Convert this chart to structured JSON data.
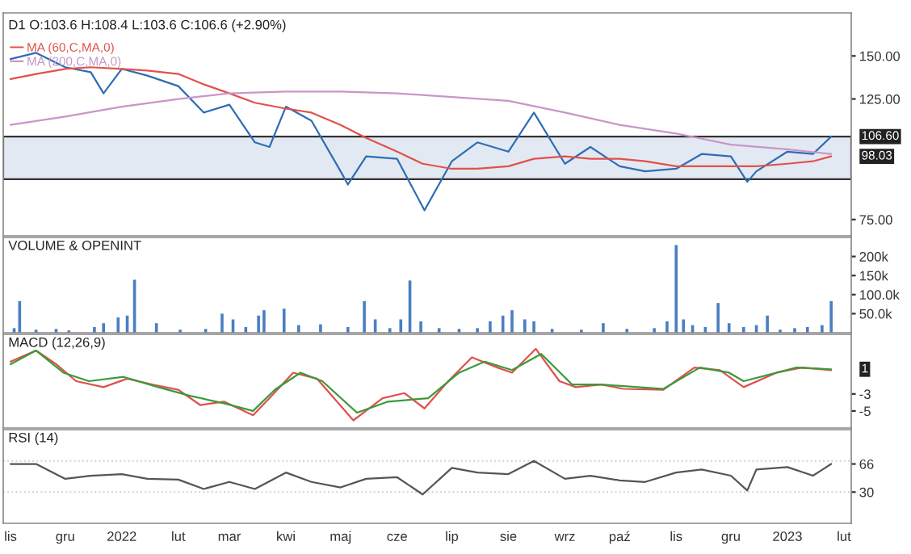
{
  "chart_data": [
    {
      "type": "line",
      "title": "D1 O:103.6 H:108.4 L:103.6 C:106.6 (+2.90%)",
      "log": true,
      "legend": "top left",
      "tick_labels": "y",
      "xlim": [
        "2021-10-28",
        "2023-02-05"
      ],
      "ylim": [
        70,
        180
      ],
      "yticks": [
        {
          "value": 150,
          "label": "150.00"
        },
        {
          "value": 125,
          "label": "125.00"
        },
        {
          "value": 75,
          "label": "75.00"
        }
      ],
      "bands": [
        {
          "axis": "y",
          "from": 89,
          "to": 106.6,
          "color": "#e3e9f2"
        }
      ],
      "series": [
        {
          "color": "#2f6db5",
          "x": [
            "2021-11-01",
            "2021-11-15",
            "2021-12-01",
            "2021-12-15",
            "2021-12-22",
            "2022-01-01",
            "2022-01-15",
            "2022-02-01",
            "2022-02-15",
            "2022-03-01",
            "2022-03-15",
            "2022-03-23",
            "2022-04-01",
            "2022-04-15",
            "2022-05-01",
            "2022-05-05",
            "2022-05-15",
            "2022-06-01",
            "2022-06-16",
            "2022-07-01",
            "2022-07-15",
            "2022-08-01",
            "2022-08-15",
            "2022-09-01",
            "2022-09-15",
            "2022-10-01",
            "2022-10-15",
            "2022-11-01",
            "2022-11-15",
            "2022-12-01",
            "2022-12-10",
            "2022-12-15",
            "2023-01-01",
            "2023-01-15",
            "2023-01-25"
          ],
          "values": [
            148,
            152,
            143,
            140,
            128,
            142,
            138,
            132,
            118,
            122,
            104,
            102,
            121,
            114,
            92,
            87,
            98,
            97,
            78,
            96,
            104,
            100,
            118,
            95,
            102,
            94,
            92,
            93,
            99,
            98,
            88,
            92,
            100,
            99,
            106.6
          ]
        },
        {
          "name": "MA (60,C,MA,0)",
          "color": "#e0524a",
          "x": [
            "2021-11-01",
            "2021-11-15",
            "2021-12-01",
            "2021-12-15",
            "2022-01-01",
            "2022-01-15",
            "2022-02-01",
            "2022-02-15",
            "2022-03-01",
            "2022-03-15",
            "2022-04-01",
            "2022-04-15",
            "2022-05-01",
            "2022-05-15",
            "2022-06-01",
            "2022-06-15",
            "2022-07-01",
            "2022-07-15",
            "2022-08-01",
            "2022-08-15",
            "2022-09-01",
            "2022-09-15",
            "2022-10-01",
            "2022-10-15",
            "2022-11-01",
            "2022-11-15",
            "2022-12-01",
            "2022-12-15",
            "2023-01-01",
            "2023-01-15",
            "2023-01-25"
          ],
          "values": [
            136,
            139,
            142,
            143,
            142,
            141,
            139,
            133,
            128,
            123,
            120,
            118,
            112,
            106,
            100,
            95,
            93,
            93,
            94,
            97,
            98,
            97,
            97,
            96,
            94,
            94,
            94,
            94,
            95,
            96,
            98.03
          ]
        },
        {
          "name": "MA (200,C,MA,0)",
          "color": "#c896c8",
          "x": [
            "2021-11-01",
            "2021-12-01",
            "2022-01-01",
            "2022-02-01",
            "2022-03-01",
            "2022-04-01",
            "2022-05-01",
            "2022-06-01",
            "2022-07-01",
            "2022-08-01",
            "2022-09-01",
            "2022-10-01",
            "2022-11-01",
            "2022-12-01",
            "2023-01-01",
            "2023-01-25"
          ],
          "values": [
            112,
            116,
            121,
            125,
            128,
            129,
            129,
            128,
            126,
            124,
            118,
            112,
            108,
            103,
            101,
            99
          ]
        }
      ],
      "annotations": [
        {
          "text": "106.60",
          "x": "2023-01-25",
          "y": 106.6
        },
        {
          "text": "98.03",
          "x": "2023-01-25",
          "y": 98.03
        }
      ]
    },
    {
      "type": "bar",
      "title": "VOLUME & OPENINT",
      "tick_labels": "y",
      "xlim": [
        "2021-10-28",
        "2023-02-05"
      ],
      "ylim": [
        0,
        250000
      ],
      "yticks": [
        {
          "value": 50000,
          "label": "50.0k"
        },
        {
          "value": 100000,
          "label": "100.0k"
        },
        {
          "value": 150000,
          "label": "150k"
        },
        {
          "value": 200000,
          "label": "200k"
        }
      ],
      "series": [
        {
          "color": "#4a7fc1",
          "x": [
            "2021-11-03",
            "2021-11-06",
            "2021-11-15",
            "2021-11-26",
            "2021-12-03",
            "2021-12-17",
            "2021-12-22",
            "2021-12-30",
            "2022-01-04",
            "2022-01-08",
            "2022-01-20",
            "2022-02-02",
            "2022-02-16",
            "2022-02-25",
            "2022-03-03",
            "2022-03-10",
            "2022-03-17",
            "2022-03-20",
            "2022-03-31",
            "2022-04-08",
            "2022-04-20",
            "2022-05-05",
            "2022-05-14",
            "2022-05-20",
            "2022-05-28",
            "2022-06-03",
            "2022-06-08",
            "2022-06-14",
            "2022-06-24",
            "2022-07-05",
            "2022-07-15",
            "2022-07-22",
            "2022-07-29",
            "2022-08-03",
            "2022-08-10",
            "2022-08-15",
            "2022-08-25",
            "2022-09-10",
            "2022-09-22",
            "2022-10-05",
            "2022-10-20",
            "2022-10-27",
            "2022-11-01",
            "2022-11-05",
            "2022-11-10",
            "2022-11-17",
            "2022-11-24",
            "2022-11-30",
            "2022-12-08",
            "2022-12-15",
            "2022-12-21",
            "2022-12-28",
            "2023-01-05",
            "2023-01-12",
            "2023-01-20",
            "2023-01-25"
          ],
          "values": [
            12000,
            83000,
            8000,
            10000,
            6000,
            15000,
            25000,
            40000,
            45000,
            139000,
            25000,
            8000,
            10000,
            50000,
            35000,
            15000,
            45000,
            59000,
            63000,
            20000,
            22000,
            15000,
            83000,
            35000,
            12000,
            35000,
            137000,
            30000,
            12000,
            10000,
            12000,
            30000,
            45000,
            59000,
            35000,
            30000,
            10000,
            8000,
            25000,
            10000,
            12000,
            30000,
            230000,
            35000,
            20000,
            15000,
            78000,
            25000,
            15000,
            20000,
            45000,
            8000,
            12000,
            15000,
            20000,
            83000
          ]
        }
      ]
    },
    {
      "type": "line",
      "title": "MACD (12,26,9)",
      "tick_labels": "y",
      "xlim": [
        "2021-10-28",
        "2023-02-05"
      ],
      "ylim": [
        -7,
        4
      ],
      "yticks": [
        -3,
        -5
      ],
      "series": [
        {
          "color": "#e05050",
          "x": [
            "2021-11-01",
            "2021-11-15",
            "2021-11-26",
            "2021-12-07",
            "2021-12-22",
            "2022-01-04",
            "2022-01-18",
            "2022-02-01",
            "2022-02-13",
            "2022-02-26",
            "2022-03-14",
            "2022-03-23",
            "2022-04-05",
            "2022-04-18",
            "2022-05-08",
            "2022-05-24",
            "2022-06-05",
            "2022-06-16",
            "2022-06-29",
            "2022-07-12",
            "2022-07-26",
            "2022-08-03",
            "2022-08-16",
            "2022-08-29",
            "2022-09-07",
            "2022-09-21",
            "2022-10-03",
            "2022-10-25",
            "2022-11-11",
            "2022-11-25",
            "2022-12-08",
            "2022-12-26",
            "2023-01-09",
            "2023-01-25"
          ],
          "values": [
            0.8,
            2.1,
            0.5,
            -1.5,
            -2.2,
            -1.2,
            -1.9,
            -2.5,
            -4.3,
            -3.9,
            -5.5,
            -3.5,
            -0.5,
            -1.2,
            -6.1,
            -3.5,
            -2.9,
            -4.7,
            -1.5,
            1.3,
            0.1,
            -0.5,
            2.3,
            -1.5,
            -2.2,
            -1.9,
            -2.4,
            -2.5,
            0.1,
            -0.2,
            -2.2,
            -0.5,
            0.1,
            -0.2
          ]
        },
        {
          "color": "#3a9a3a",
          "x": [
            "2021-11-01",
            "2021-11-15",
            "2021-11-30",
            "2021-12-14",
            "2022-01-02",
            "2022-01-21",
            "2022-02-07",
            "2022-02-26",
            "2022-03-14",
            "2022-03-26",
            "2022-04-09",
            "2022-04-21",
            "2022-05-10",
            "2022-05-27",
            "2022-06-18",
            "2022-07-05",
            "2022-07-19",
            "2022-08-03",
            "2022-08-19",
            "2022-09-05",
            "2022-09-21",
            "2022-10-25",
            "2022-11-14",
            "2022-11-30",
            "2022-12-08",
            "2023-01-06",
            "2023-01-25"
          ],
          "values": [
            0.5,
            2.1,
            -0.5,
            -1.5,
            -1.0,
            -2.2,
            -3.2,
            -4.1,
            -5.0,
            -2.5,
            -0.5,
            -1.5,
            -5.2,
            -3.9,
            -3.5,
            -0.5,
            0.8,
            -0.2,
            1.7,
            -1.9,
            -1.9,
            -2.4,
            0.1,
            -0.5,
            -1.5,
            0.1,
            -0.1
          ]
        }
      ],
      "annotations": [
        {
          "text": "1",
          "x": "2023-01-25",
          "y": -0.1
        }
      ]
    },
    {
      "type": "line",
      "title": "RSI (14)",
      "xlim": [
        "2021-10-28",
        "2023-02-05"
      ],
      "ylim": [
        -10,
        110
      ],
      "yticks": [
        66,
        30
      ],
      "xticks": [
        {
          "value": "2021-11-01",
          "label": "lis"
        },
        {
          "value": "2021-12-01",
          "label": "gru"
        },
        {
          "value": "2022-01-01",
          "label": "2022"
        },
        {
          "value": "2022-02-01",
          "label": "lut"
        },
        {
          "value": "2022-03-01",
          "label": "mar"
        },
        {
          "value": "2022-04-01",
          "label": "kwi"
        },
        {
          "value": "2022-05-01",
          "label": "maj"
        },
        {
          "value": "2022-06-01",
          "label": "cze"
        },
        {
          "value": "2022-07-01",
          "label": "lip"
        },
        {
          "value": "2022-08-01",
          "label": "sie"
        },
        {
          "value": "2022-09-01",
          "label": "wrz"
        },
        {
          "value": "2022-10-01",
          "label": "paź"
        },
        {
          "value": "2022-11-01",
          "label": "lis"
        },
        {
          "value": "2022-12-01",
          "label": "gru"
        },
        {
          "value": "2023-01-01",
          "label": "2023"
        },
        {
          "value": "2023-02-01",
          "label": "lut"
        }
      ],
      "ref_lines": [
        {
          "axis": "y",
          "value": 70,
          "color": "#d0d0d0",
          "line_style": "dotted"
        },
        {
          "axis": "y",
          "value": 30,
          "color": "#d0d0d0",
          "line_style": "dotted"
        }
      ],
      "series": [
        {
          "color": "#555555",
          "x": [
            "2021-11-01",
            "2021-11-15",
            "2021-12-01",
            "2021-12-15",
            "2022-01-01",
            "2022-01-15",
            "2022-02-01",
            "2022-02-15",
            "2022-03-01",
            "2022-03-15",
            "2022-04-01",
            "2022-04-15",
            "2022-05-01",
            "2022-05-15",
            "2022-06-01",
            "2022-06-15",
            "2022-07-01",
            "2022-07-15",
            "2022-08-01",
            "2022-08-15",
            "2022-09-01",
            "2022-09-15",
            "2022-10-01",
            "2022-10-15",
            "2022-11-01",
            "2022-11-15",
            "2022-12-01",
            "2022-12-10",
            "2022-12-15",
            "2023-01-01",
            "2023-01-15",
            "2023-01-25"
          ],
          "values": [
            66,
            66,
            47,
            51,
            53,
            47,
            46,
            34,
            43,
            34,
            55,
            43,
            36,
            47,
            49,
            27,
            61,
            55,
            53,
            70,
            47,
            51,
            45,
            43,
            55,
            59,
            51,
            32,
            59,
            62,
            51,
            66
          ]
        }
      ]
    }
  ]
}
